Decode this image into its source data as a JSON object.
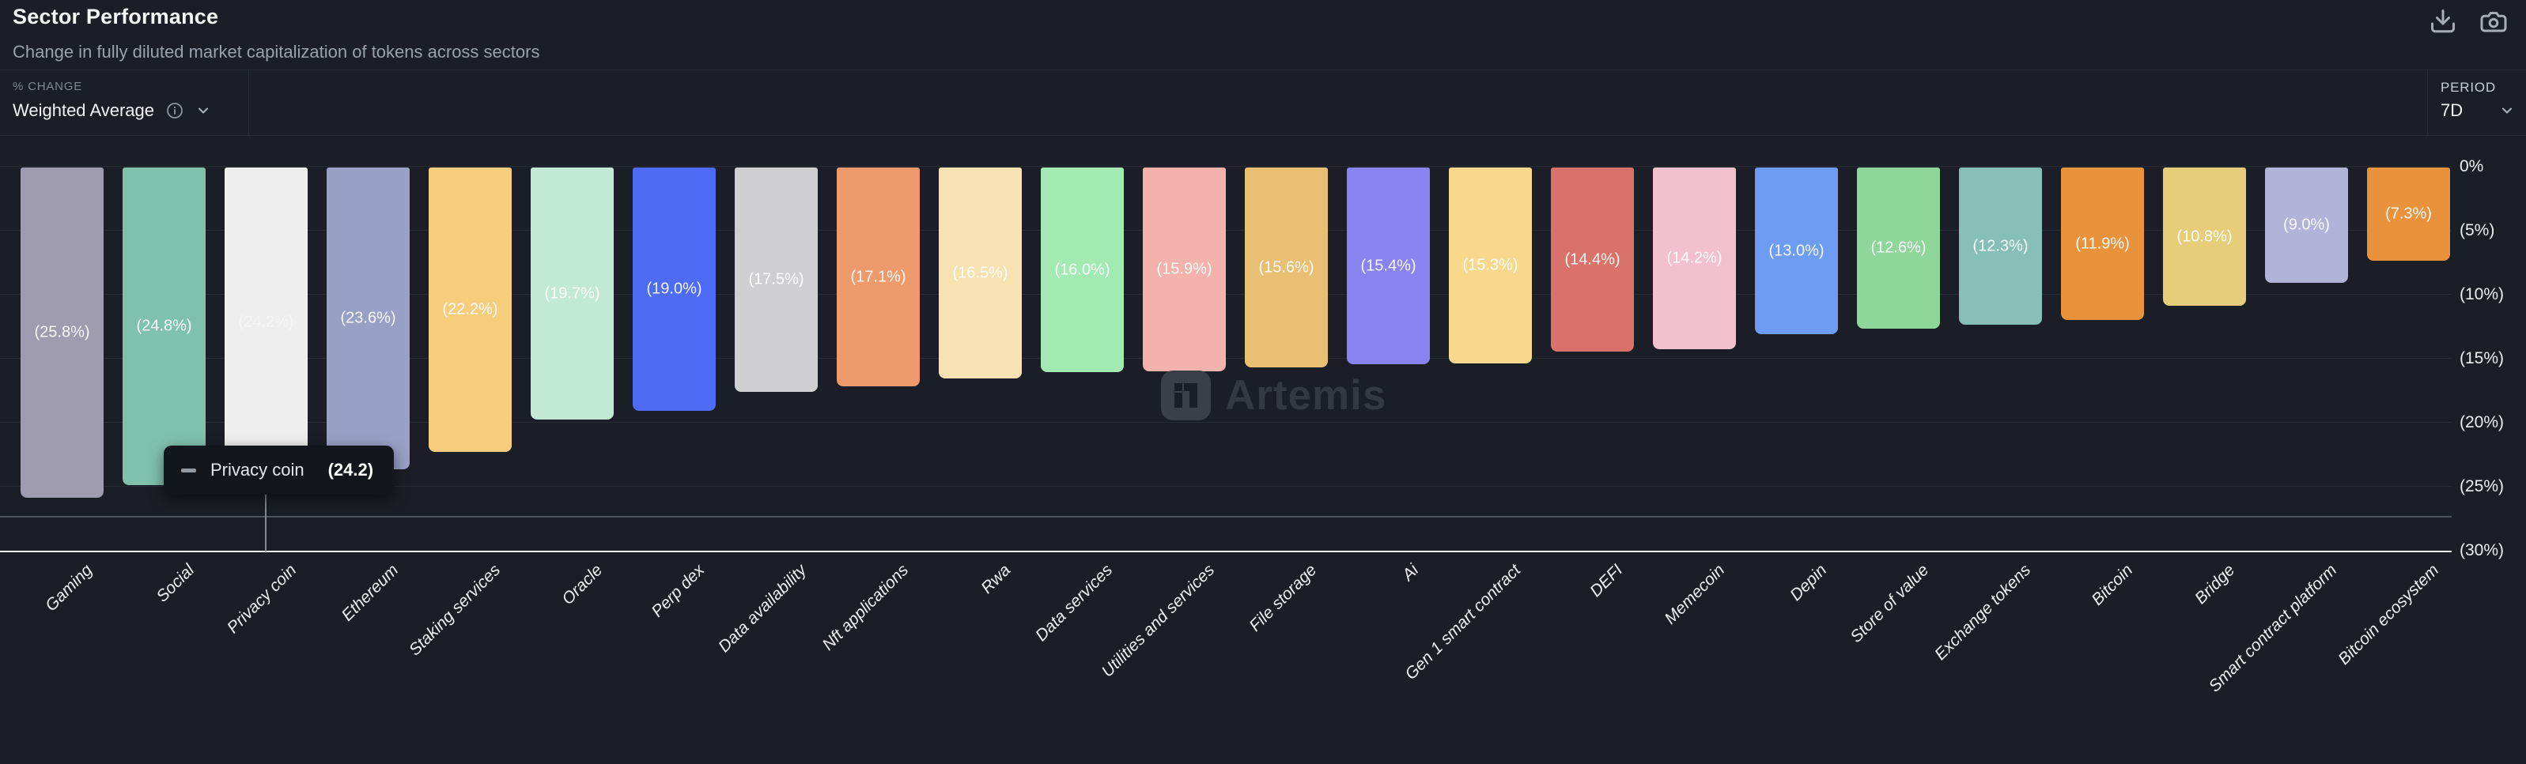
{
  "header": {
    "title": "Sector Performance",
    "subtitle": "Change in fully diluted market capitalization of tokens across sectors"
  },
  "toolbar": {
    "download_icon": "download",
    "screenshot_icon": "camera"
  },
  "controls": {
    "metric_label": "% CHANGE",
    "metric_value": "Weighted Average",
    "metric_info_icon": "info-circle",
    "period_label": "PERIOD",
    "period_value": "7D"
  },
  "tooltip": {
    "series": "Privacy coin",
    "value": "(24.2)"
  },
  "watermark": {
    "text": "Artemis"
  },
  "chart_data": {
    "type": "bar",
    "title": "Sector Performance",
    "subtitle": "Change in fully diluted market capitalization of tokens across sectors",
    "orientation": "vertical-negative",
    "categories": [
      "Gaming",
      "Social",
      "Privacy coin",
      "Ethereum",
      "Staking services",
      "Oracle",
      "Perp dex",
      "Data availability",
      "Nft applications",
      "Rwa",
      "Data services",
      "Utilities and services",
      "File storage",
      "Ai",
      "Gen 1 smart contract",
      "DEFI",
      "Memecoin",
      "Depin",
      "Store of value",
      "Exchange tokens",
      "Bitcoin",
      "Bridge",
      "Smart contract platform",
      "Bitcoin ecosystem"
    ],
    "values": [
      -25.8,
      -24.8,
      -24.2,
      -23.6,
      -22.2,
      -19.7,
      -19.0,
      -17.5,
      -17.1,
      -16.5,
      -16.0,
      -15.9,
      -15.6,
      -15.4,
      -15.3,
      -14.4,
      -14.2,
      -13.0,
      -12.6,
      -12.3,
      -11.9,
      -10.8,
      -9.0,
      -7.3
    ],
    "bar_labels": [
      "(25.8%)",
      "(24.8%)",
      "(24.2%)",
      "(23.6%)",
      "(22.2%)",
      "(19.7%)",
      "(19.0%)",
      "(17.5%)",
      "(17.1%)",
      "(16.5%)",
      "(16.0%)",
      "(15.9%)",
      "(15.6%)",
      "(15.4%)",
      "(15.3%)",
      "(14.4%)",
      "(14.2%)",
      "(13.0%)",
      "(12.6%)",
      "(12.3%)",
      "(11.9%)",
      "(10.8%)",
      "(9.0%)",
      "(7.3%)"
    ],
    "bar_colors": [
      "#9e9cae",
      "#80c1ae",
      "#eeeeee",
      "#99a0c6",
      "#f6cd7c",
      "#c2e9d4",
      "#4d6bf4",
      "#cfcfd1",
      "#ee9a6c",
      "#f8e2b2",
      "#a2e9b2",
      "#f3b3ac",
      "#e9bf73",
      "#8883ef",
      "#f7d88c",
      "#d9726a",
      "#f3c0ce",
      "#6e9cf2",
      "#8ed69a",
      "#86bfb8",
      "#e8923c",
      "#e5cd79",
      "#b2b3d8",
      "#e8923c"
    ],
    "hovered_index": 2,
    "hovered_value_label": "(24.2)",
    "y_tick_labels": [
      "0%",
      "(5%)",
      "(10%)",
      "(15%)",
      "(20%)",
      "(25%)",
      "(30%)"
    ],
    "ylim": [
      -30,
      0
    ],
    "y_tick_step": 5,
    "grid": true,
    "legend": false,
    "xlabel": "",
    "ylabel": ""
  }
}
